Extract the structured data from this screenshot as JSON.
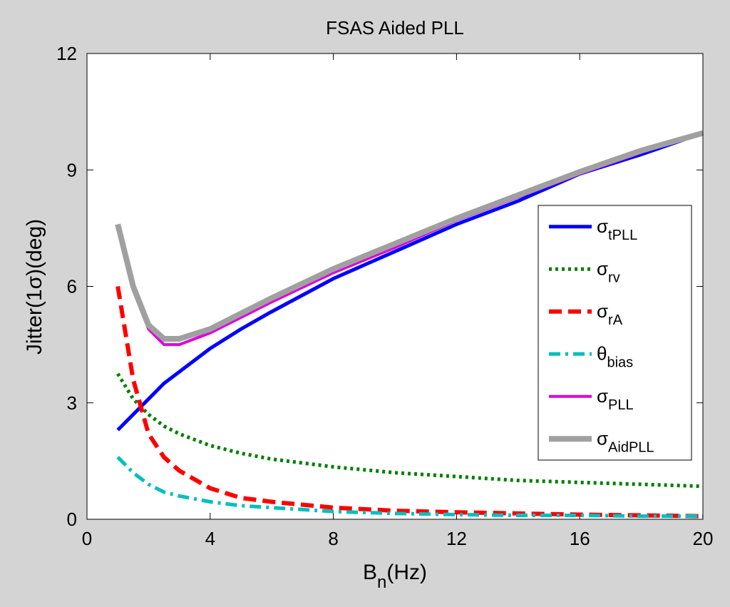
{
  "chart_data": {
    "type": "line",
    "title": "FSAS Aided PLL",
    "xlabel": {
      "text": "B",
      "sub": "n",
      "after": "(Hz)"
    },
    "ylabel": "Jitter(1σ)(deg)",
    "x": [
      1,
      1.5,
      2,
      2.5,
      3,
      4,
      5,
      6,
      8,
      10,
      12,
      14,
      16,
      18,
      20
    ],
    "series": [
      {
        "name": "σtPLL",
        "color": "#0000ff",
        "dash": "solid",
        "values": [
          2.3,
          2.7,
          3.1,
          3.5,
          3.8,
          4.4,
          4.9,
          5.35,
          6.2,
          6.9,
          7.6,
          8.2,
          8.9,
          9.4,
          9.95
        ]
      },
      {
        "name": "σrv",
        "color": "#007f00",
        "dash": "dotted",
        "values": [
          3.75,
          3.1,
          2.7,
          2.4,
          2.2,
          1.9,
          1.7,
          1.55,
          1.35,
          1.2,
          1.1,
          1.0,
          0.95,
          0.9,
          0.85
        ]
      },
      {
        "name": "σrA",
        "color": "#ff0000",
        "dash": "dashed",
        "values": [
          6.0,
          3.6,
          2.2,
          1.6,
          1.25,
          0.8,
          0.55,
          0.45,
          0.3,
          0.22,
          0.18,
          0.15,
          0.12,
          0.1,
          0.08
        ]
      },
      {
        "name": "θbias",
        "color": "#00bfbf",
        "dash": "dashdot",
        "values": [
          1.6,
          1.2,
          0.9,
          0.7,
          0.6,
          0.45,
          0.35,
          0.3,
          0.2,
          0.15,
          0.12,
          0.1,
          0.1,
          0.08,
          0.08
        ]
      },
      {
        "name": "σPLL",
        "color": "#dd00dd",
        "dash": "solid",
        "values": [
          7.5,
          5.9,
          4.9,
          4.5,
          4.5,
          4.8,
          5.2,
          5.6,
          6.35,
          7.0,
          7.7,
          8.3,
          8.9,
          9.45,
          9.95
        ]
      },
      {
        "name": "σAidPLL",
        "color": "#a0a0a0",
        "dash": "solid",
        "values": [
          7.6,
          6.0,
          5.0,
          4.65,
          4.65,
          4.9,
          5.3,
          5.7,
          6.45,
          7.1,
          7.75,
          8.35,
          8.95,
          9.5,
          9.95
        ]
      }
    ],
    "xlim": [
      0,
      20
    ],
    "xticks": [
      0,
      4,
      8,
      12,
      16,
      20
    ],
    "ylim": [
      0,
      12
    ],
    "yticks": [
      0,
      3,
      6,
      9,
      12
    ],
    "grid": false,
    "legend": "east"
  }
}
